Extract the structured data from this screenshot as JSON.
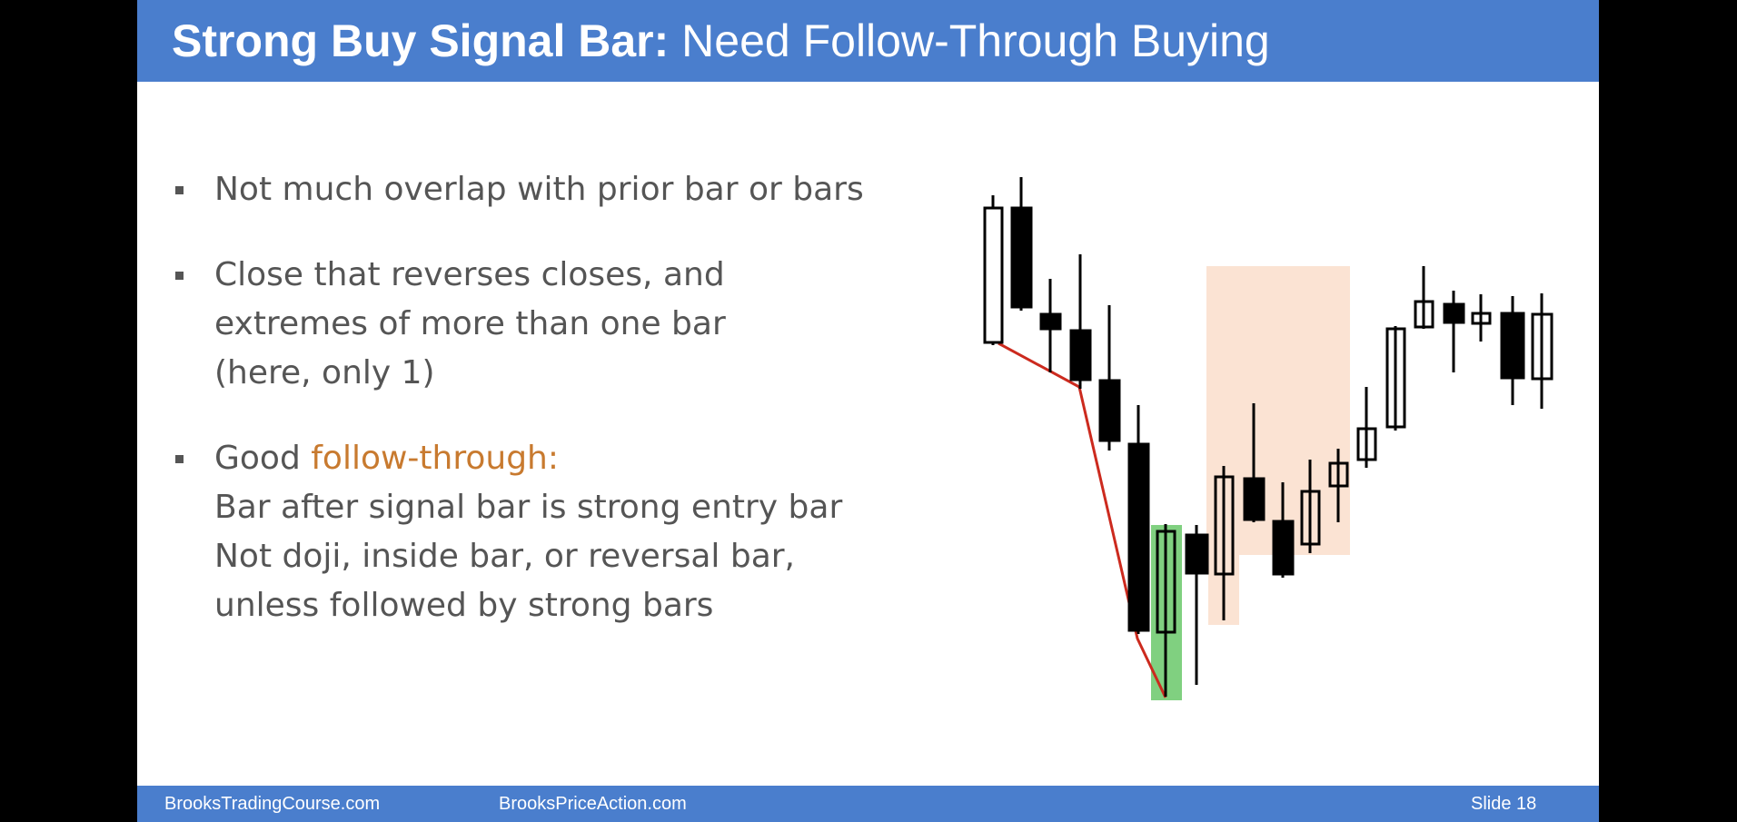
{
  "title": {
    "bold_part": "Strong Buy Signal Bar:",
    "regular_part": "Need Follow-Through Buying"
  },
  "bullets": [
    {
      "lines": [
        "Not much overlap with prior bar or bars"
      ]
    },
    {
      "lines": [
        "Close that reverses closes, and",
        "extremes of more than one bar",
        "(here, only 1)"
      ]
    },
    {
      "first_prefix": "Good ",
      "first_accent": "follow-through:",
      "lines": [
        "Bar after signal bar is strong entry bar",
        "Not doji, inside bar, or reversal bar,",
        "unless followed by strong bars"
      ]
    }
  ],
  "footer": {
    "left_site": "BrooksTradingCourse.com",
    "middle_site": "BrooksPriceAction.com",
    "slide_label": "Slide  18"
  },
  "colors": {
    "header_footer": "#4a7ecd",
    "text": "#555555",
    "accent_text": "#c87a2f",
    "bear_bar": "#000000",
    "bull_bar": "#ffffff",
    "trend_line": "#cc2a1e",
    "signal_highlight": "#80d080",
    "follow_through_highlight": "#fbe3d3"
  },
  "icons": {
    "bullet": "square-bullet-icon"
  }
}
